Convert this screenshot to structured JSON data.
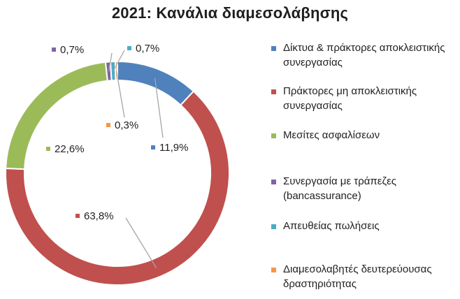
{
  "chart_data": {
    "type": "pie",
    "donut": true,
    "title": "2021: Κανάλια διαμεσολάβησης",
    "series": [
      {
        "name": "Δίκτυα & πράκτορες αποκλειστικής συνεργασίας",
        "value": 11.9,
        "label": "11,9%",
        "color": "#4f81bd"
      },
      {
        "name": "Πράκτορες μη αποκλειστικής συνεργασίας",
        "value": 63.8,
        "label": "63,8%",
        "color": "#c0504d"
      },
      {
        "name": "Μεσίτες ασφαλίσεων",
        "value": 22.6,
        "label": "22,6%",
        "color": "#9bbb59"
      },
      {
        "name": "Συνεργασία με τράπεζες (bancassurance)",
        "value": 0.7,
        "label": "0,7%",
        "color": "#8064a2"
      },
      {
        "name": "Απευθείας πωλήσεις",
        "value": 0.7,
        "label": "0,7%",
        "color": "#4bacc6"
      },
      {
        "name": "Διαμεσολαβητές δευτερεύουσας δραστηριότητας",
        "value": 0.3,
        "label": "0,3%",
        "color": "#f79646"
      }
    ],
    "legend_position": "right"
  }
}
